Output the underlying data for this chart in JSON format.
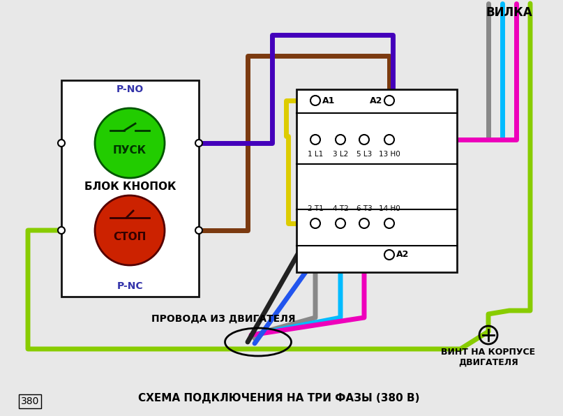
{
  "bg_color": "#e8e8e8",
  "title_bottom": "СХЕМА ПОДКЛЮЧЕНИЯ НА ТРИ ФАЗЫ (380 В)",
  "label_380": "380",
  "label_vilka": "ВИЛКА",
  "label_blok": "БЛОК КНОПОК",
  "label_pusk": "ПУСК",
  "label_stop": "СТОП",
  "label_pno": "P-NO",
  "label_pnc": "P-NC",
  "label_provoda": "ПРОВОДА ИЗ ДВИГАТЕЛЯ",
  "label_vint": "ВИНТ НА КОРПУСЕ\nДВИГАТЕЛЯ",
  "label_a1_top": "A1",
  "label_a2_top": "A2",
  "label_a2_bot": "A2",
  "terminal_labels_top": [
    "1 L1",
    "3 L2",
    "5 L3",
    "13 H0"
  ],
  "terminal_labels_bot": [
    "2 T1",
    "4 T2",
    "6 T3",
    "14 H0"
  ],
  "wire_brown": "#7B3A10",
  "wire_purple": "#4400bb",
  "wire_yellow": "#ddcc00",
  "wire_gray": "#888888",
  "wire_cyan": "#00bbff",
  "wire_magenta": "#ee00bb",
  "wire_lime": "#88cc00",
  "wire_black": "#222222",
  "wire_blue": "#2255ee",
  "green_btn": "#22cc00",
  "red_btn": "#cc2200",
  "box_color": "#ffffff",
  "line_color": "#111111"
}
